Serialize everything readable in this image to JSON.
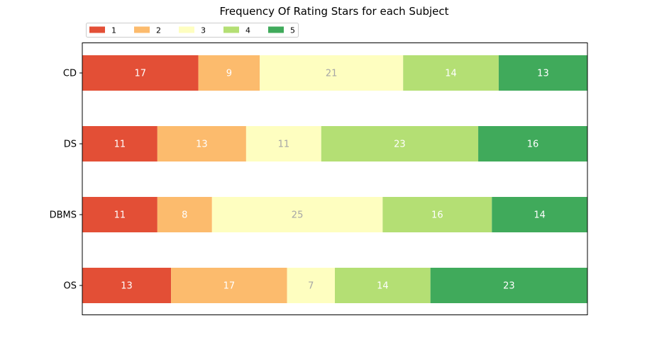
{
  "chart_data": {
    "type": "bar",
    "orientation": "horizontal",
    "stacked": true,
    "title": "Frequency Of Rating Stars for each Subject",
    "xlabel": "",
    "ylabel": "",
    "categories": [
      "CD",
      "DS",
      "DBMS",
      "OS"
    ],
    "series": [
      {
        "name": "1",
        "color": "#e34f36",
        "label_color": "#ffffff",
        "values": [
          17,
          11,
          11,
          13
        ]
      },
      {
        "name": "2",
        "color": "#fcbb6d",
        "label_color": "#ffffff",
        "values": [
          9,
          13,
          8,
          17
        ]
      },
      {
        "name": "3",
        "color": "#fefec0",
        "label_color": "#a6a6a6",
        "values": [
          21,
          11,
          25,
          7
        ]
      },
      {
        "name": "4",
        "color": "#b4df74",
        "label_color": "#ffffff",
        "values": [
          14,
          23,
          16,
          14
        ]
      },
      {
        "name": "5",
        "color": "#40aa5b",
        "label_color": "#ffffff",
        "values": [
          13,
          16,
          14,
          23
        ]
      }
    ],
    "xlim": [
      0,
      74
    ],
    "x_axis_visible": false,
    "grid": false,
    "legend": {
      "placement": "top-left, above plot",
      "ncol": 5
    }
  }
}
